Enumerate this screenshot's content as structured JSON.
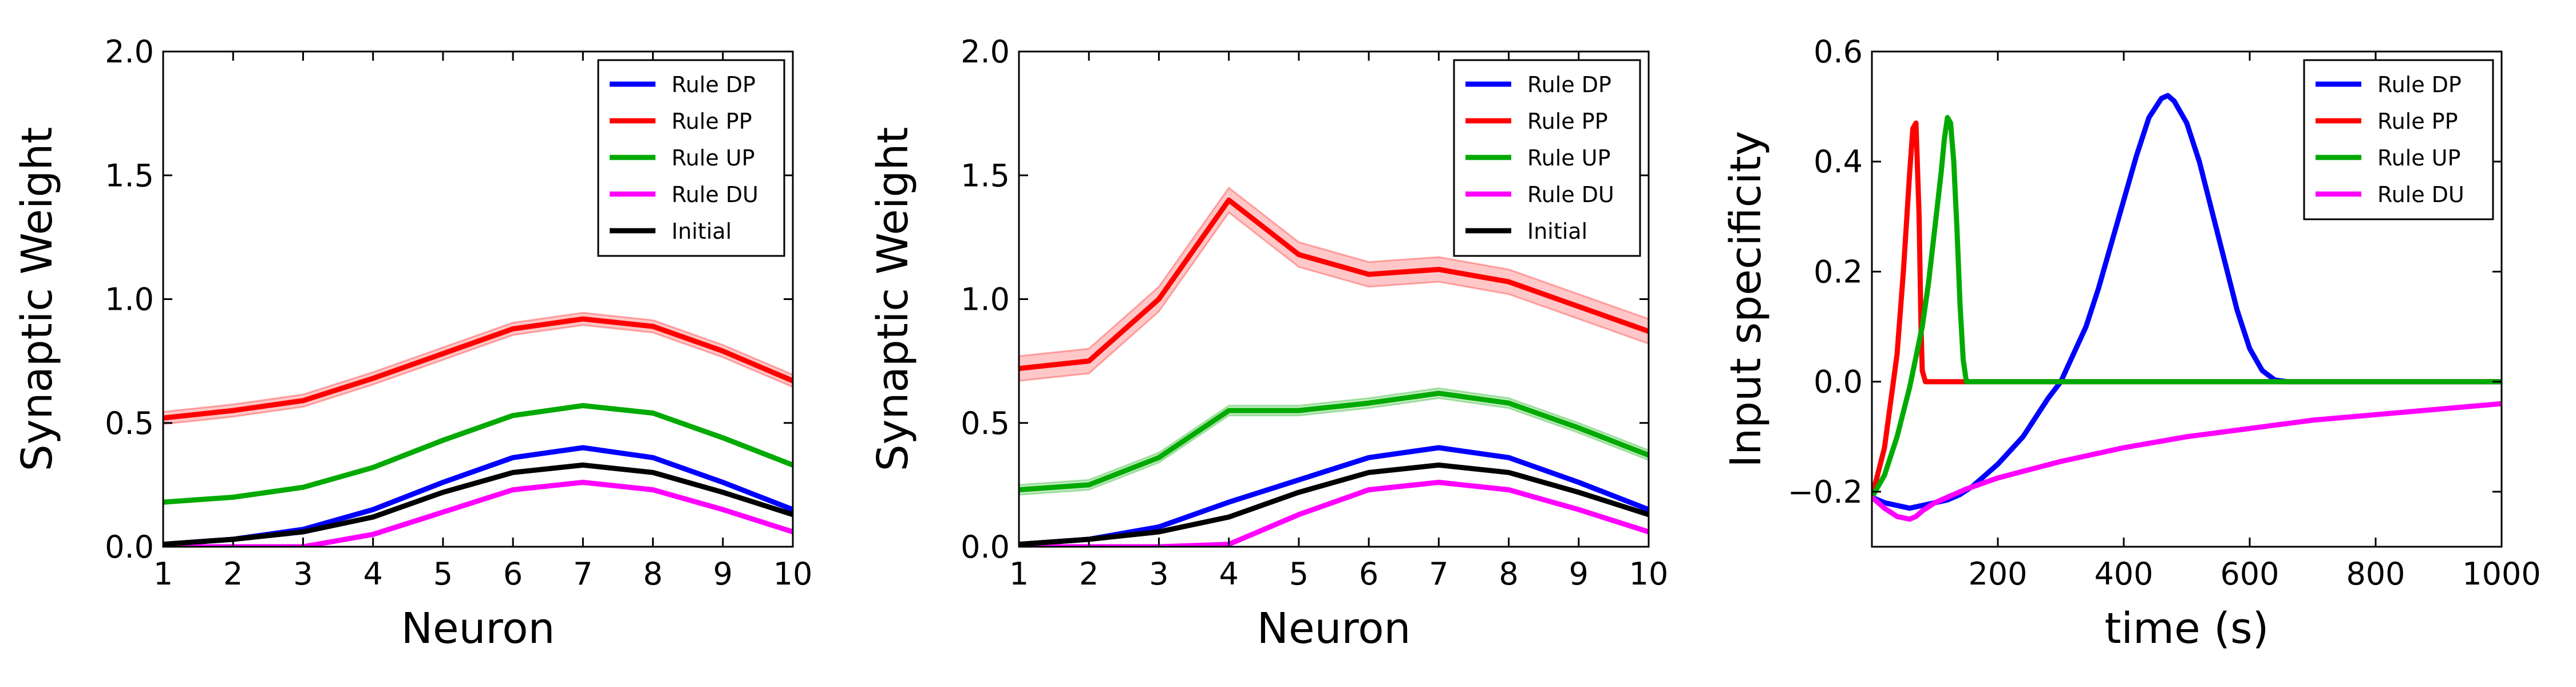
{
  "chart_data": [
    {
      "type": "line",
      "xlabel": "Neuron",
      "ylabel": "Synaptic Weight",
      "xlim": [
        1,
        10
      ],
      "ylim": [
        0,
        2.0
      ],
      "xticks": [
        "1",
        "2",
        "3",
        "4",
        "5",
        "6",
        "7",
        "8",
        "9",
        "10"
      ],
      "yticks": [
        "0.0",
        "0.5",
        "1.0",
        "1.5",
        "2.0"
      ],
      "grid": false,
      "legend_position": "top-right",
      "x": [
        1,
        2,
        3,
        4,
        5,
        6,
        7,
        8,
        9,
        10
      ],
      "series": [
        {
          "name": "Rule DP",
          "color": "#0000ff",
          "values": [
            0.01,
            0.03,
            0.07,
            0.15,
            0.26,
            0.36,
            0.4,
            0.36,
            0.26,
            0.15
          ]
        },
        {
          "name": "Rule PP",
          "color": "#ff0000",
          "values": [
            0.52,
            0.55,
            0.59,
            0.68,
            0.78,
            0.88,
            0.92,
            0.89,
            0.79,
            0.67
          ],
          "band": 0.025
        },
        {
          "name": "Rule UP",
          "color": "#00aa00",
          "values": [
            0.18,
            0.2,
            0.24,
            0.32,
            0.43,
            0.53,
            0.57,
            0.54,
            0.44,
            0.33
          ]
        },
        {
          "name": "Rule DU",
          "color": "#ff00ff",
          "values": [
            0.0,
            0.0,
            0.0,
            0.05,
            0.14,
            0.23,
            0.26,
            0.23,
            0.15,
            0.06
          ]
        },
        {
          "name": "Initial",
          "color": "#000000",
          "values": [
            0.01,
            0.03,
            0.06,
            0.12,
            0.22,
            0.3,
            0.33,
            0.3,
            0.22,
            0.13
          ]
        }
      ]
    },
    {
      "type": "line",
      "xlabel": "Neuron",
      "ylabel": "Synaptic Weight",
      "xlim": [
        1,
        10
      ],
      "ylim": [
        0,
        2.0
      ],
      "xticks": [
        "1",
        "2",
        "3",
        "4",
        "5",
        "6",
        "7",
        "8",
        "9",
        "10"
      ],
      "yticks": [
        "0.0",
        "0.5",
        "1.0",
        "1.5",
        "2.0"
      ],
      "grid": false,
      "legend_position": "top-right",
      "x": [
        1,
        2,
        3,
        4,
        5,
        6,
        7,
        8,
        9,
        10
      ],
      "series": [
        {
          "name": "Rule DP",
          "color": "#0000ff",
          "values": [
            0.01,
            0.03,
            0.08,
            0.18,
            0.27,
            0.36,
            0.4,
            0.36,
            0.26,
            0.15
          ]
        },
        {
          "name": "Rule PP",
          "color": "#ff0000",
          "values": [
            0.72,
            0.75,
            1.0,
            1.4,
            1.18,
            1.1,
            1.12,
            1.07,
            0.97,
            0.87
          ],
          "band": 0.05
        },
        {
          "name": "Rule UP",
          "color": "#00aa00",
          "values": [
            0.23,
            0.25,
            0.36,
            0.55,
            0.55,
            0.58,
            0.62,
            0.58,
            0.48,
            0.37
          ],
          "band": 0.02
        },
        {
          "name": "Rule DU",
          "color": "#ff00ff",
          "values": [
            0.0,
            0.0,
            0.0,
            0.01,
            0.13,
            0.23,
            0.26,
            0.23,
            0.15,
            0.06
          ]
        },
        {
          "name": "Initial",
          "color": "#000000",
          "values": [
            0.01,
            0.03,
            0.06,
            0.12,
            0.22,
            0.3,
            0.33,
            0.3,
            0.22,
            0.13
          ]
        }
      ]
    },
    {
      "type": "line",
      "xlabel": "time (s)",
      "ylabel": "Input specificity",
      "xlim": [
        0,
        1000
      ],
      "ylim": [
        -0.3,
        0.6
      ],
      "xticks": [
        "200",
        "400",
        "600",
        "800",
        "1000"
      ],
      "yticks": [
        "−0.2",
        "0.0",
        "0.2",
        "0.4",
        "0.6"
      ],
      "grid": false,
      "legend_position": "top-right",
      "series": [
        {
          "name": "Rule DP",
          "color": "#0000ff",
          "x": [
            0,
            20,
            40,
            60,
            80,
            100,
            120,
            140,
            160,
            180,
            200,
            240,
            280,
            300,
            320,
            340,
            360,
            380,
            400,
            420,
            440,
            460,
            470,
            480,
            500,
            520,
            540,
            560,
            580,
            600,
            620,
            640,
            660,
            680,
            1000
          ],
          "values": [
            -0.21,
            -0.22,
            -0.225,
            -0.23,
            -0.225,
            -0.22,
            -0.215,
            -0.205,
            -0.19,
            -0.17,
            -0.15,
            -0.1,
            -0.03,
            0.0,
            0.05,
            0.1,
            0.17,
            0.25,
            0.33,
            0.41,
            0.48,
            0.515,
            0.52,
            0.51,
            0.47,
            0.4,
            0.31,
            0.22,
            0.13,
            0.06,
            0.02,
            0.003,
            0.0,
            0.0,
            0.0
          ]
        },
        {
          "name": "Rule PP",
          "color": "#ff0000",
          "x": [
            0,
            20,
            40,
            50,
            60,
            65,
            70,
            75,
            78,
            80,
            85,
            1000
          ],
          "values": [
            -0.21,
            -0.12,
            0.05,
            0.2,
            0.38,
            0.46,
            0.47,
            0.3,
            0.1,
            0.02,
            0.0,
            0.0
          ]
        },
        {
          "name": "Rule UP",
          "color": "#00aa00",
          "x": [
            0,
            20,
            40,
            60,
            80,
            90,
            100,
            110,
            115,
            120,
            125,
            130,
            135,
            140,
            145,
            150,
            155,
            1000
          ],
          "values": [
            -0.21,
            -0.17,
            -0.1,
            -0.01,
            0.1,
            0.18,
            0.28,
            0.38,
            0.44,
            0.48,
            0.47,
            0.4,
            0.28,
            0.14,
            0.04,
            0.0,
            0.0,
            0.0
          ]
        },
        {
          "name": "Rule DU",
          "color": "#ff00ff",
          "x": [
            0,
            20,
            40,
            60,
            70,
            80,
            100,
            120,
            150,
            200,
            250,
            300,
            400,
            500,
            600,
            700,
            800,
            900,
            1000
          ],
          "values": [
            -0.21,
            -0.23,
            -0.245,
            -0.25,
            -0.245,
            -0.235,
            -0.22,
            -0.21,
            -0.195,
            -0.175,
            -0.16,
            -0.145,
            -0.12,
            -0.1,
            -0.085,
            -0.07,
            -0.06,
            -0.05,
            -0.04
          ]
        }
      ]
    }
  ]
}
